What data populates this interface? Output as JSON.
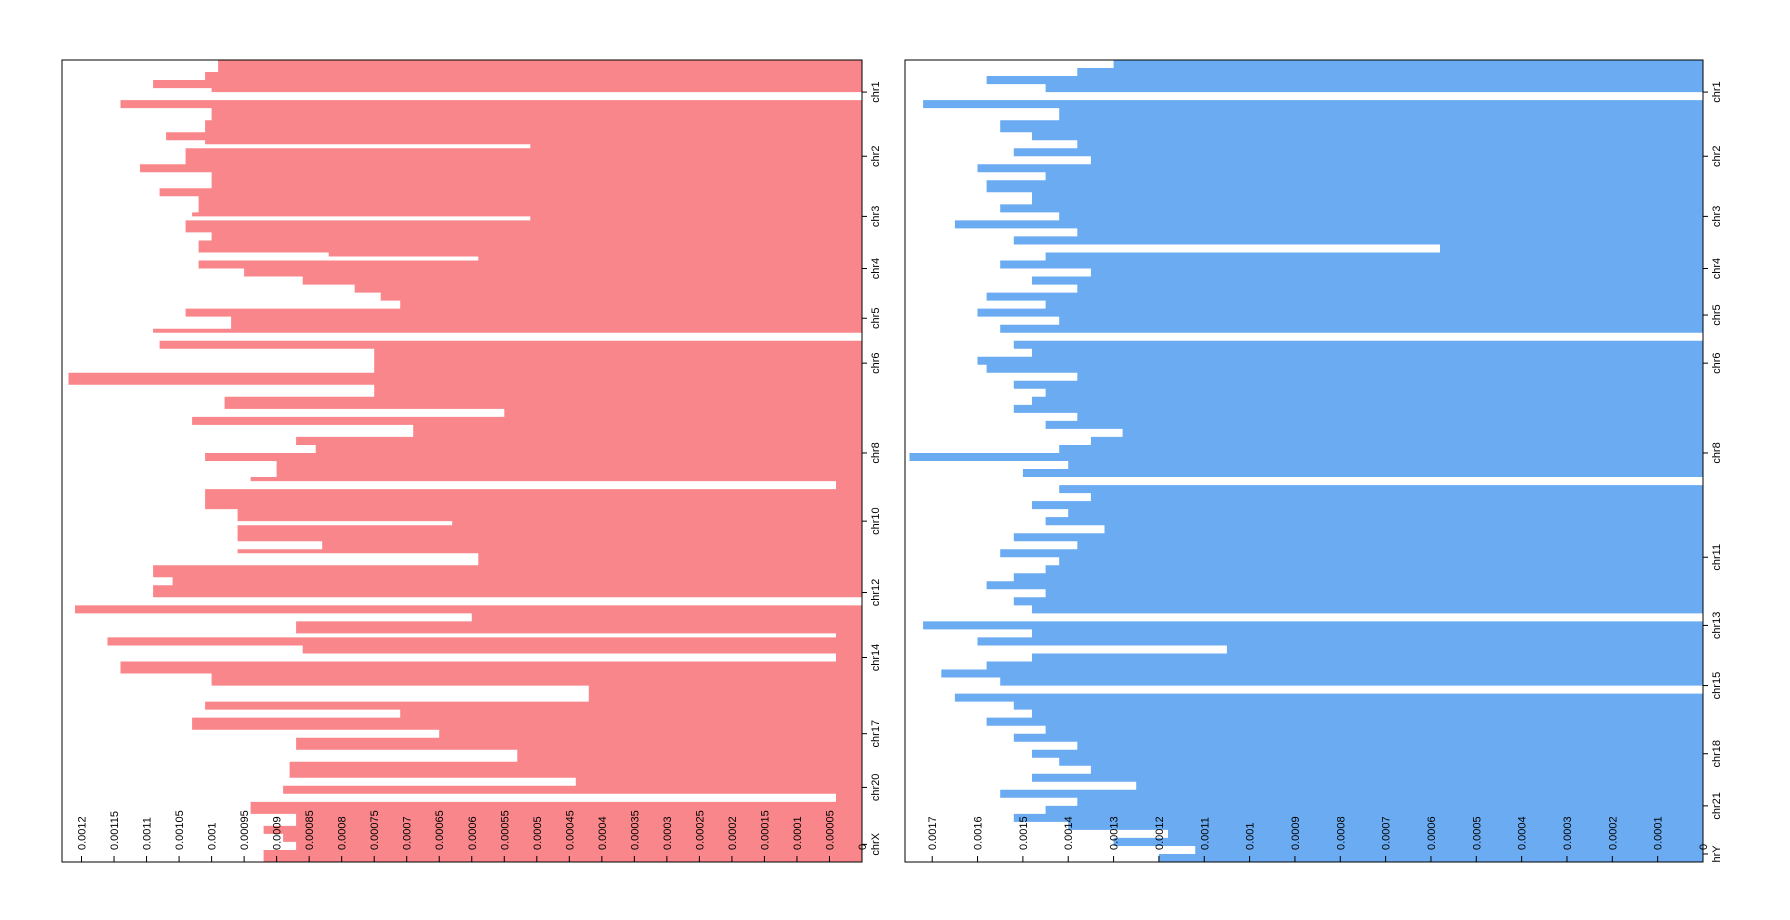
{
  "chart_data": [
    {
      "type": "area",
      "orientation": "horizontal",
      "color": "#f8868a",
      "xlim": [
        0,
        0.00123
      ],
      "ticks": [
        "0.0012",
        "0.00115",
        "0.0011",
        "0.00105",
        "0.001",
        "0.00095",
        "0.0009",
        "0.00085",
        "0.0008",
        "0.00075",
        "0.0007",
        "0.00065",
        "0.0006",
        "0.00055",
        "0.0005",
        "0.00045",
        "0.0004",
        "0.00035",
        "0.0003",
        "0.00025",
        "0.0002",
        "0.00015",
        "0.0001",
        "0.00005",
        "0"
      ],
      "tick_values": [
        0.0012,
        0.00115,
        0.0011,
        0.00105,
        0.001,
        0.00095,
        0.0009,
        0.00085,
        0.0008,
        0.00075,
        0.0007,
        0.00065,
        0.0006,
        0.00055,
        0.0005,
        0.00045,
        0.0004,
        0.00035,
        0.0003,
        0.00025,
        0.0002,
        0.00015,
        0.0001,
        5e-05,
        0
      ],
      "chromosomes": [
        {
          "label": "chr1",
          "pos": 0.04
        },
        {
          "label": "chr2",
          "pos": 0.12
        },
        {
          "label": "chr3",
          "pos": 0.195
        },
        {
          "label": "chr4",
          "pos": 0.26
        },
        {
          "label": "chr5",
          "pos": 0.322
        },
        {
          "label": "chr6",
          "pos": 0.378
        },
        {
          "label": "chr8",
          "pos": 0.49
        },
        {
          "label": "chr10",
          "pos": 0.575
        },
        {
          "label": "chr12",
          "pos": 0.664
        },
        {
          "label": "chr14",
          "pos": 0.745
        },
        {
          "label": "chr17",
          "pos": 0.84
        },
        {
          "label": "chr20",
          "pos": 0.907
        },
        {
          "label": "chrX",
          "pos": 0.978
        }
      ],
      "profile": [
        [
          0.0,
          0.00099
        ],
        [
          0.015,
          0.00101
        ],
        [
          0.025,
          0.00109
        ],
        [
          0.035,
          0.001
        ],
        [
          0.04,
          0.0
        ],
        [
          0.05,
          0.00114
        ],
        [
          0.06,
          0.001
        ],
        [
          0.075,
          0.00101
        ],
        [
          0.09,
          0.00107
        ],
        [
          0.1,
          0.00101
        ],
        [
          0.105,
          0.00051
        ],
        [
          0.11,
          0.00104
        ],
        [
          0.13,
          0.00111
        ],
        [
          0.14,
          0.001
        ],
        [
          0.16,
          0.00108
        ],
        [
          0.17,
          0.00102
        ],
        [
          0.19,
          0.00103
        ],
        [
          0.195,
          0.00051
        ],
        [
          0.2,
          0.00104
        ],
        [
          0.215,
          0.001
        ],
        [
          0.225,
          0.00102
        ],
        [
          0.24,
          0.00082
        ],
        [
          0.245,
          0.00059
        ],
        [
          0.25,
          0.00102
        ],
        [
          0.26,
          0.00095
        ],
        [
          0.27,
          0.00086
        ],
        [
          0.28,
          0.00078
        ],
        [
          0.29,
          0.00074
        ],
        [
          0.3,
          0.00071
        ],
        [
          0.31,
          0.00104
        ],
        [
          0.32,
          0.00097
        ],
        [
          0.335,
          0.00109
        ],
        [
          0.34,
          0.0
        ],
        [
          0.35,
          0.00108
        ],
        [
          0.36,
          0.00075
        ],
        [
          0.39,
          0.00122
        ],
        [
          0.405,
          0.00075
        ],
        [
          0.42,
          0.00098
        ],
        [
          0.435,
          0.00055
        ],
        [
          0.445,
          0.00103
        ],
        [
          0.455,
          0.00069
        ],
        [
          0.47,
          0.00087
        ],
        [
          0.48,
          0.00084
        ],
        [
          0.49,
          0.00101
        ],
        [
          0.5,
          0.0009
        ],
        [
          0.52,
          0.00094
        ],
        [
          0.525,
          4e-05
        ],
        [
          0.535,
          0.00101
        ],
        [
          0.55,
          0.00101
        ],
        [
          0.56,
          0.00096
        ],
        [
          0.575,
          0.00063
        ],
        [
          0.58,
          0.00096
        ],
        [
          0.6,
          0.00083
        ],
        [
          0.61,
          0.00096
        ],
        [
          0.615,
          0.00059
        ],
        [
          0.63,
          0.00109
        ],
        [
          0.645,
          0.00106
        ],
        [
          0.655,
          0.00109
        ],
        [
          0.67,
          0.0
        ],
        [
          0.68,
          0.00121
        ],
        [
          0.69,
          0.0006
        ],
        [
          0.7,
          0.00087
        ],
        [
          0.715,
          4e-05
        ],
        [
          0.72,
          0.00116
        ],
        [
          0.73,
          0.00086
        ],
        [
          0.74,
          4e-05
        ],
        [
          0.75,
          0.00114
        ],
        [
          0.765,
          0.001
        ],
        [
          0.78,
          0.00042
        ],
        [
          0.8,
          0.00101
        ],
        [
          0.81,
          0.00071
        ],
        [
          0.82,
          0.00103
        ],
        [
          0.835,
          0.00065
        ],
        [
          0.845,
          0.00087
        ],
        [
          0.86,
          0.00053
        ],
        [
          0.875,
          0.00088
        ],
        [
          0.895,
          0.00044
        ],
        [
          0.905,
          0.00089
        ],
        [
          0.915,
          4e-05
        ],
        [
          0.925,
          0.00094
        ],
        [
          0.94,
          0.00087
        ],
        [
          0.955,
          0.00092
        ],
        [
          0.965,
          0.00089
        ],
        [
          0.975,
          0.00087
        ],
        [
          0.985,
          0.00092
        ],
        [
          1.0,
          0.00092
        ]
      ]
    },
    {
      "type": "area",
      "orientation": "horizontal",
      "color": "#6aabf2",
      "xlim": [
        0,
        0.00176
      ],
      "ticks": [
        "0.0017",
        "0.0016",
        "0.0015",
        "0.0014",
        "0.0013",
        "0.0012",
        "0.0011",
        "0.001",
        "0.0009",
        "0.0008",
        "0.0007",
        "0.0006",
        "0.0005",
        "0.0004",
        "0.0003",
        "0.0002",
        "0.0001",
        "0"
      ],
      "tick_values": [
        0.0017,
        0.0016,
        0.0015,
        0.0014,
        0.0013,
        0.0012,
        0.0011,
        0.001,
        0.0009,
        0.0008,
        0.0007,
        0.0006,
        0.0005,
        0.0004,
        0.0003,
        0.0002,
        0.0001,
        0
      ],
      "chromosomes": [
        {
          "label": "chr1",
          "pos": 0.04
        },
        {
          "label": "chr2",
          "pos": 0.12
        },
        {
          "label": "chr3",
          "pos": 0.195
        },
        {
          "label": "chr4",
          "pos": 0.26
        },
        {
          "label": "chr5",
          "pos": 0.318
        },
        {
          "label": "chr6",
          "pos": 0.378
        },
        {
          "label": "chr8",
          "pos": 0.49
        },
        {
          "label": "chr11",
          "pos": 0.62
        },
        {
          "label": "chr13",
          "pos": 0.705
        },
        {
          "label": "chr15",
          "pos": 0.78
        },
        {
          "label": "chr18",
          "pos": 0.865
        },
        {
          "label": "chr21",
          "pos": 0.93
        },
        {
          "label": "hrY",
          "pos": 0.99
        }
      ],
      "profile": [
        [
          0.0,
          0.0013
        ],
        [
          0.01,
          0.00138
        ],
        [
          0.02,
          0.00158
        ],
        [
          0.03,
          0.00145
        ],
        [
          0.04,
          0.0
        ],
        [
          0.05,
          0.00172
        ],
        [
          0.06,
          0.00142
        ],
        [
          0.075,
          0.00155
        ],
        [
          0.09,
          0.00148
        ],
        [
          0.1,
          0.00138
        ],
        [
          0.11,
          0.00152
        ],
        [
          0.12,
          0.00135
        ],
        [
          0.13,
          0.0016
        ],
        [
          0.14,
          0.00145
        ],
        [
          0.15,
          0.00158
        ],
        [
          0.165,
          0.00148
        ],
        [
          0.18,
          0.00155
        ],
        [
          0.19,
          0.00142
        ],
        [
          0.2,
          0.00165
        ],
        [
          0.21,
          0.00138
        ],
        [
          0.22,
          0.00152
        ],
        [
          0.23,
          0.00058
        ],
        [
          0.24,
          0.00145
        ],
        [
          0.25,
          0.00155
        ],
        [
          0.26,
          0.00135
        ],
        [
          0.27,
          0.00148
        ],
        [
          0.28,
          0.00138
        ],
        [
          0.29,
          0.00158
        ],
        [
          0.3,
          0.00145
        ],
        [
          0.31,
          0.0016
        ],
        [
          0.32,
          0.00142
        ],
        [
          0.33,
          0.00155
        ],
        [
          0.34,
          0.0
        ],
        [
          0.35,
          0.00152
        ],
        [
          0.36,
          0.00148
        ],
        [
          0.37,
          0.0016
        ],
        [
          0.38,
          0.00158
        ],
        [
          0.39,
          0.00138
        ],
        [
          0.4,
          0.00152
        ],
        [
          0.41,
          0.00145
        ],
        [
          0.42,
          0.00148
        ],
        [
          0.43,
          0.00152
        ],
        [
          0.44,
          0.00138
        ],
        [
          0.45,
          0.00145
        ],
        [
          0.46,
          0.00128
        ],
        [
          0.47,
          0.00135
        ],
        [
          0.48,
          0.00142
        ],
        [
          0.49,
          0.00175
        ],
        [
          0.5,
          0.0014
        ],
        [
          0.51,
          0.0015
        ],
        [
          0.52,
          0.0
        ],
        [
          0.53,
          0.00142
        ],
        [
          0.54,
          0.00135
        ],
        [
          0.55,
          0.00148
        ],
        [
          0.56,
          0.0014
        ],
        [
          0.57,
          0.00145
        ],
        [
          0.58,
          0.00132
        ],
        [
          0.59,
          0.00152
        ],
        [
          0.6,
          0.00138
        ],
        [
          0.61,
          0.00155
        ],
        [
          0.62,
          0.00142
        ],
        [
          0.63,
          0.00145
        ],
        [
          0.64,
          0.00152
        ],
        [
          0.65,
          0.00158
        ],
        [
          0.66,
          0.00145
        ],
        [
          0.67,
          0.00152
        ],
        [
          0.68,
          0.00148
        ],
        [
          0.69,
          0.0
        ],
        [
          0.7,
          0.00172
        ],
        [
          0.71,
          0.00148
        ],
        [
          0.72,
          0.0016
        ],
        [
          0.73,
          0.00105
        ],
        [
          0.74,
          0.00148
        ],
        [
          0.75,
          0.00158
        ],
        [
          0.76,
          0.00168
        ],
        [
          0.77,
          0.00155
        ],
        [
          0.78,
          0.0
        ],
        [
          0.79,
          0.00165
        ],
        [
          0.8,
          0.00152
        ],
        [
          0.81,
          0.00148
        ],
        [
          0.82,
          0.00158
        ],
        [
          0.83,
          0.00145
        ],
        [
          0.84,
          0.00152
        ],
        [
          0.85,
          0.00138
        ],
        [
          0.86,
          0.00148
        ],
        [
          0.87,
          0.00142
        ],
        [
          0.88,
          0.00135
        ],
        [
          0.89,
          0.00148
        ],
        [
          0.9,
          0.00125
        ],
        [
          0.91,
          0.00155
        ],
        [
          0.92,
          0.00138
        ],
        [
          0.93,
          0.00145
        ],
        [
          0.94,
          0.00152
        ],
        [
          0.95,
          0.0014
        ],
        [
          0.96,
          0.00118
        ],
        [
          0.97,
          0.0013
        ],
        [
          0.98,
          0.00112
        ],
        [
          0.99,
          0.0012
        ],
        [
          1.0,
          0.0012
        ]
      ]
    }
  ]
}
